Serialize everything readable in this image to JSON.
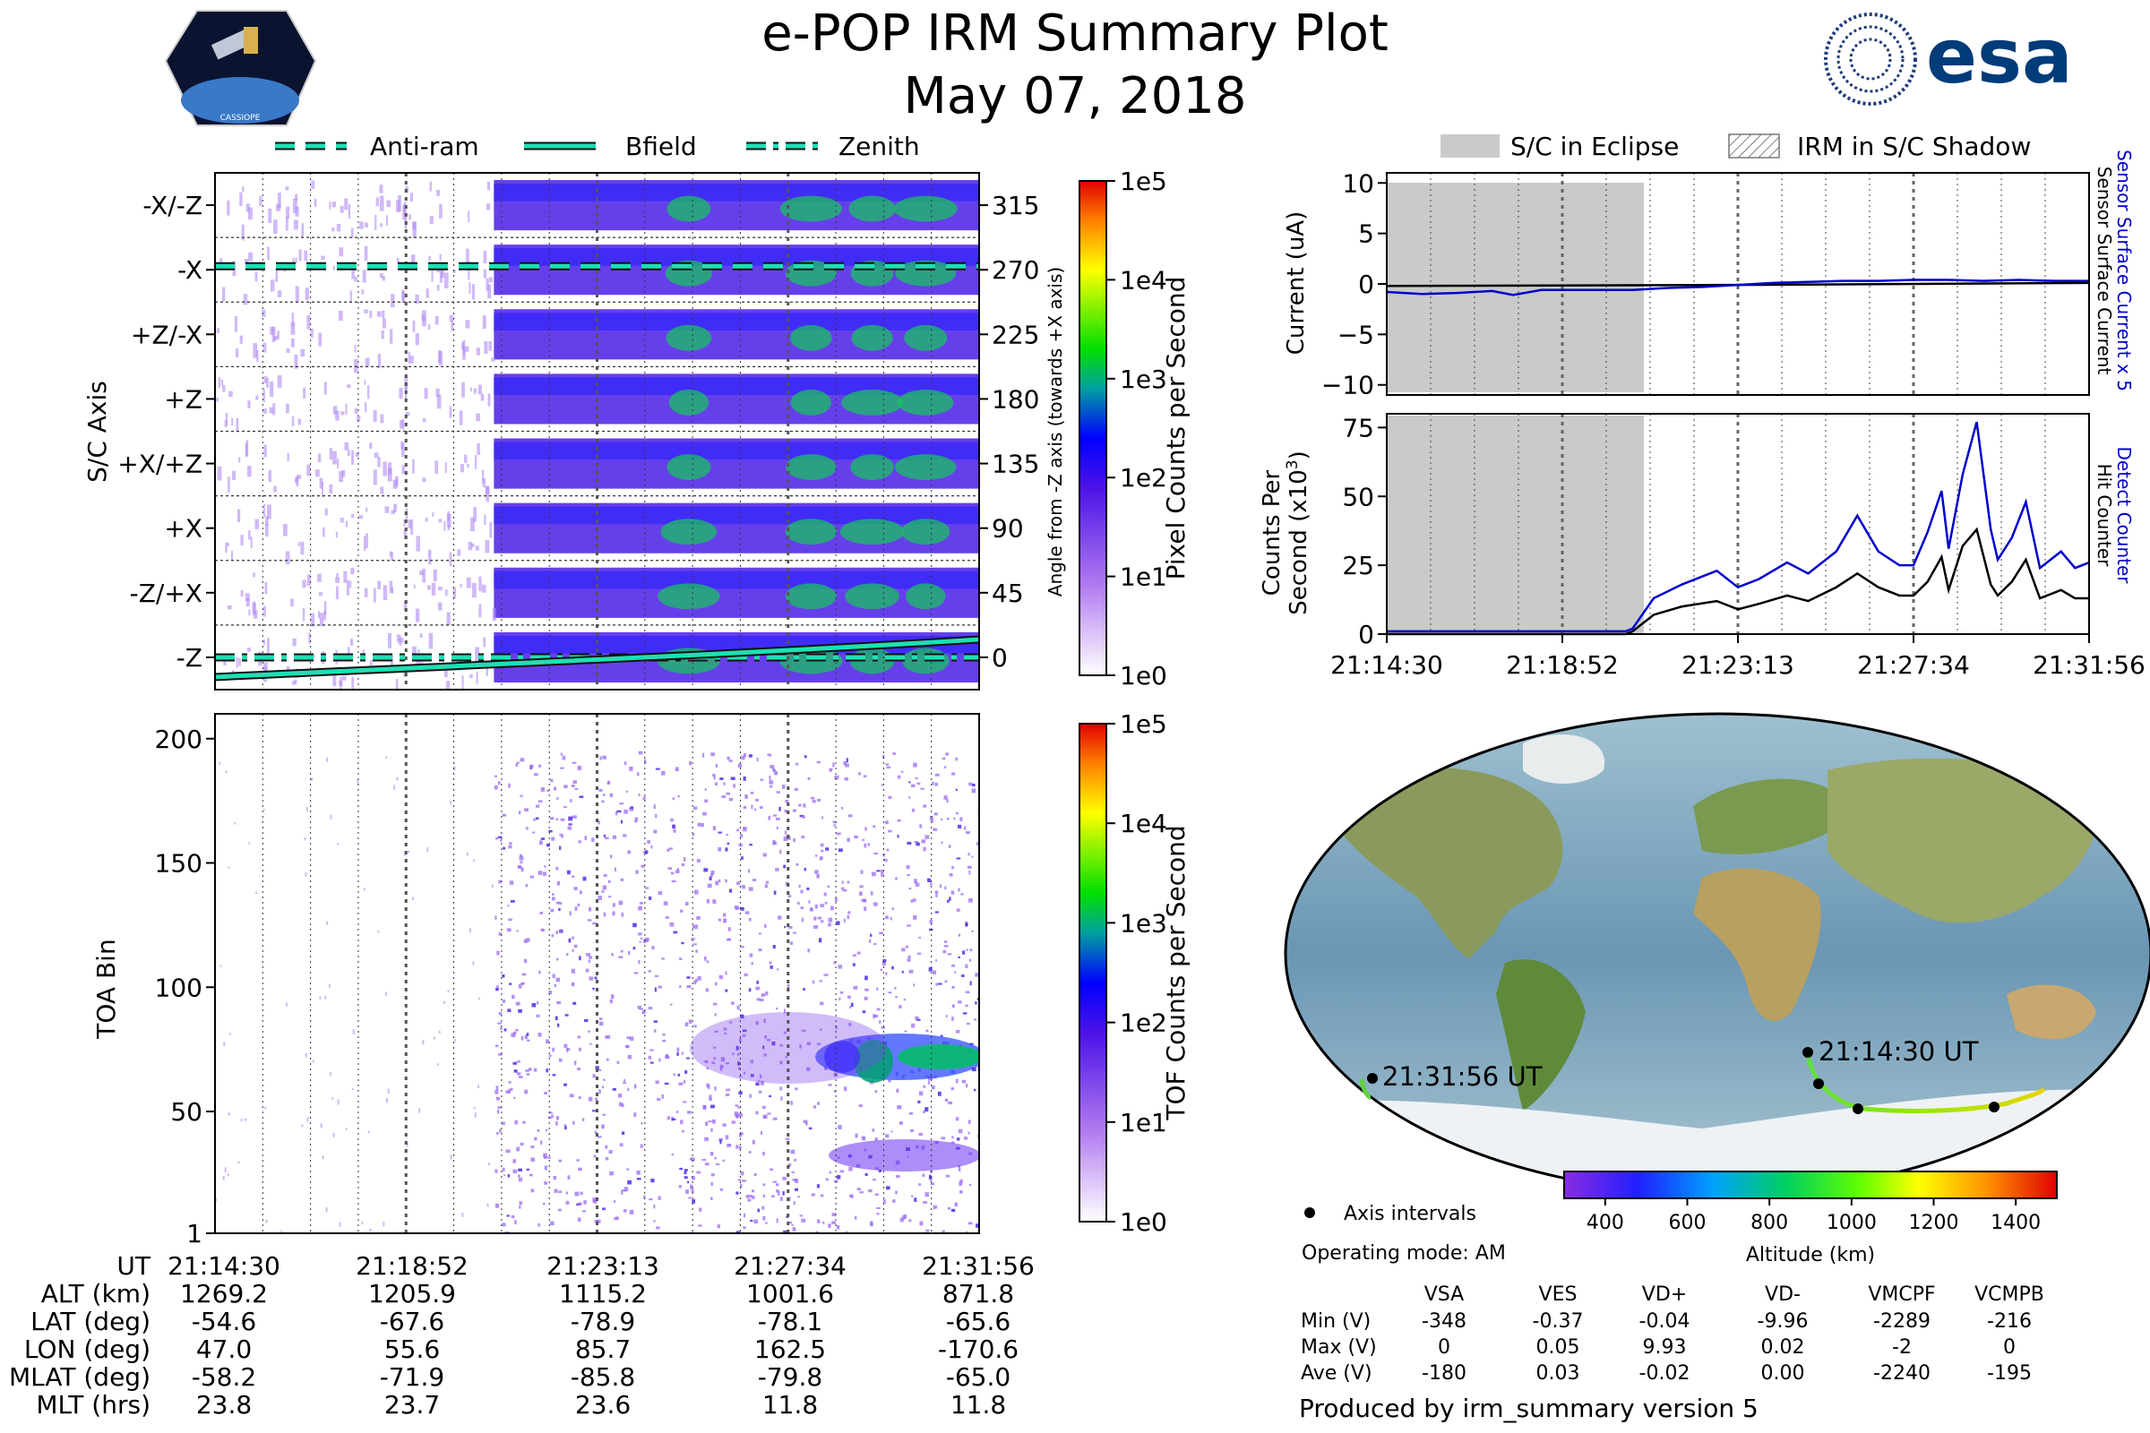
{
  "header": {
    "title": "e-POP IRM Summary Plot",
    "date": "May 07, 2018",
    "left_logo_text": "CASSIOPE",
    "right_logo_text": "esa"
  },
  "legend_top": [
    {
      "label": "Anti-ram",
      "style": "dashed"
    },
    {
      "label": "Bfield",
      "style": "solid"
    },
    {
      "label": "Zenith",
      "style": "dashdot"
    }
  ],
  "legend_right": [
    {
      "label": "S/C in Eclipse"
    },
    {
      "label": "IRM in S/C Shadow"
    }
  ],
  "colors": {
    "line_teal": "#1de0b4",
    "current_blue": "#0000cc",
    "eclipse_gray": "#c8cbc9"
  },
  "time_labels": [
    "21:14:30",
    "21:18:52",
    "21:23:13",
    "21:27:34",
    "21:31:56"
  ],
  "chart_data": [
    {
      "id": "pixel_spectrogram",
      "type": "heatmap",
      "ylabel": "S/C Axis",
      "y2label": "Angle from -Z axis (towards +X axis)",
      "y_categories": [
        "-X/-Z",
        "-X",
        "+Z/-X",
        "+Z",
        "+X/+Z",
        "+X",
        "-Z/+X",
        "-Z"
      ],
      "y2_ticks": [
        315,
        270,
        225,
        180,
        135,
        90,
        45,
        0
      ],
      "colorbar": {
        "label": "Pixel Counts per Second",
        "ticks": [
          "1e5",
          "1e4",
          "1e3",
          "1e2",
          "1e1",
          "1e0"
        ]
      },
      "overlays": [
        "Anti-ram at -X",
        "Bfield near -Z rising",
        "Zenith at -Z"
      ]
    },
    {
      "id": "tof_spectrogram",
      "type": "heatmap",
      "ylabel": "TOA Bin",
      "y_ticks": [
        1,
        50,
        100,
        150,
        200
      ],
      "ylim": [
        1,
        210
      ],
      "colorbar": {
        "label": "TOF Counts per Second",
        "ticks": [
          "1e5",
          "1e4",
          "1e3",
          "1e2",
          "1e1",
          "1e0"
        ]
      }
    },
    {
      "id": "current",
      "type": "line",
      "ylabel": "Current (uA)",
      "ylim": [
        -11,
        11
      ],
      "y_ticks": [
        10,
        5,
        0,
        -5,
        -10
      ],
      "right_label_1": "Sensor Surface Current x 5",
      "right_label_2": "Sensor Surface Current",
      "series": [
        {
          "name": "Sensor Surface Current x 5",
          "color": "#0000cc",
          "t": [
            0,
            0.05,
            0.1,
            0.15,
            0.18,
            0.22,
            0.28,
            0.35,
            0.4,
            0.45,
            0.5,
            0.55,
            0.6,
            0.65,
            0.7,
            0.75,
            0.8,
            0.85,
            0.9,
            0.95,
            1.0
          ],
          "values": [
            -0.8,
            -1.0,
            -0.9,
            -0.7,
            -1.1,
            -0.6,
            -0.6,
            -0.6,
            -0.4,
            -0.3,
            -0.1,
            0.1,
            0.2,
            0.3,
            0.3,
            0.4,
            0.4,
            0.3,
            0.4,
            0.3,
            0.3
          ]
        },
        {
          "name": "Sensor Surface Current",
          "color": "#000000",
          "t": [
            0,
            0.5,
            1.0
          ],
          "values": [
            -0.2,
            -0.1,
            0.1
          ]
        }
      ]
    },
    {
      "id": "hit_counter",
      "type": "line",
      "ylabel": "Counts Per Second (x10^3)",
      "ylim": [
        0,
        80
      ],
      "y_ticks": [
        0,
        25,
        50,
        75
      ],
      "right_label_1": "Detect Counter",
      "right_label_2": "Hit Counter",
      "series": [
        {
          "name": "Detect Counter",
          "color": "#0000cc",
          "t": [
            0,
            0.34,
            0.35,
            0.38,
            0.42,
            0.47,
            0.5,
            0.53,
            0.57,
            0.6,
            0.64,
            0.67,
            0.7,
            0.73,
            0.75,
            0.77,
            0.79,
            0.8,
            0.82,
            0.84,
            0.86,
            0.87,
            0.89,
            0.91,
            0.93,
            0.96,
            0.98,
            1.0
          ],
          "values": [
            1,
            1,
            2,
            13,
            18,
            23,
            17,
            20,
            26,
            22,
            30,
            43,
            30,
            25,
            25,
            37,
            52,
            31,
            58,
            77,
            38,
            27,
            35,
            48,
            24,
            30,
            24,
            26
          ]
        },
        {
          "name": "Hit Counter",
          "color": "#000000",
          "t": [
            0,
            0.34,
            0.35,
            0.38,
            0.42,
            0.47,
            0.5,
            0.53,
            0.57,
            0.6,
            0.64,
            0.67,
            0.7,
            0.73,
            0.75,
            0.77,
            0.79,
            0.8,
            0.82,
            0.84,
            0.86,
            0.87,
            0.89,
            0.91,
            0.93,
            0.96,
            0.98,
            1.0
          ],
          "values": [
            0,
            0,
            1,
            7,
            10,
            12,
            9,
            11,
            14,
            12,
            17,
            22,
            17,
            14,
            14,
            19,
            28,
            16,
            32,
            38,
            18,
            14,
            19,
            27,
            13,
            16,
            13,
            13
          ]
        }
      ],
      "eclipse_until": 0.34
    },
    {
      "id": "orbit_map",
      "type": "scatter",
      "labels": [
        "21:14:30 UT",
        "21:31:56 UT"
      ],
      "colorbar": {
        "label": "Altitude (km)",
        "ticks": [
          400,
          600,
          800,
          1000,
          1200,
          1400
        ],
        "range": [
          300,
          1500
        ]
      }
    }
  ],
  "ephemeris": {
    "row_labels": [
      "UT",
      "ALT (km)",
      "LAT (deg)",
      "LON (deg)",
      "MLAT (deg)",
      "MLT (hrs)"
    ],
    "columns": [
      [
        "21:14:30",
        "1269.2",
        "-54.6",
        "47.0",
        "-58.2",
        "23.8"
      ],
      [
        "21:18:52",
        "1205.9",
        "-67.6",
        "55.6",
        "-71.9",
        "23.7"
      ],
      [
        "21:23:13",
        "1115.2",
        "-78.9",
        "85.7",
        "-85.8",
        "23.6"
      ],
      [
        "21:27:34",
        "1001.6",
        "-78.1",
        "162.5",
        "-79.8",
        "11.8"
      ],
      [
        "21:31:56",
        "871.8",
        "-65.6",
        "-170.6",
        "-65.0",
        "11.8"
      ]
    ]
  },
  "info": {
    "axis_intervals": "Axis intervals",
    "operating_mode": "Operating mode: AM",
    "volt_headers": [
      "VSA",
      "VES",
      "VD+",
      "VD-",
      "VMCPF",
      "VCMPB"
    ],
    "volt_rows": [
      {
        "label": "Min (V)",
        "values": [
          "-348",
          "-0.37",
          "-0.04",
          "-9.96",
          "-2289",
          "-216"
        ]
      },
      {
        "label": "Max (V)",
        "values": [
          "0",
          "0.05",
          "9.93",
          "0.02",
          "-2",
          "0"
        ]
      },
      {
        "label": "Ave (V)",
        "values": [
          "-180",
          "0.03",
          "-0.02",
          "0.00",
          "-2240",
          "-195"
        ]
      }
    ],
    "produced_by": "Produced by irm_summary version 5"
  }
}
